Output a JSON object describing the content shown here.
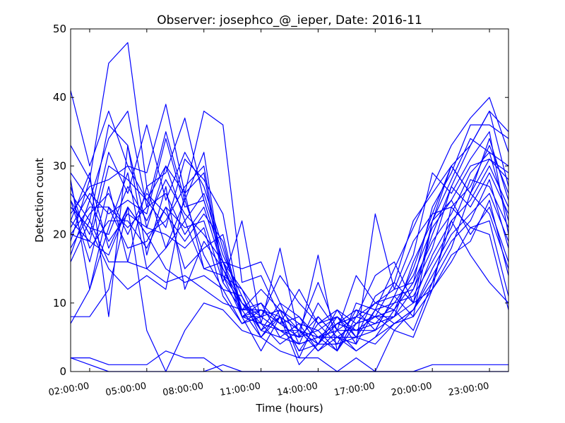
{
  "chart_data": {
    "type": "line",
    "title": "Observer: josephco_@_ieper, Date: 2016-11",
    "xlabel": "Time (hours)",
    "ylabel": "Detection count",
    "x_unit": "hours",
    "xlim": [
      1,
      24
    ],
    "ylim": [
      0,
      50
    ],
    "yticks": [
      0,
      10,
      20,
      30,
      40,
      50
    ],
    "xticks": [
      {
        "x": 2,
        "label": "02:00:00"
      },
      {
        "x": 5,
        "label": "05:00:00"
      },
      {
        "x": 8,
        "label": "08:00:00"
      },
      {
        "x": 11,
        "label": "11:00:00"
      },
      {
        "x": 14,
        "label": "14:00:00"
      },
      {
        "x": 17,
        "label": "17:00:00"
      },
      {
        "x": 20,
        "label": "20:00:00"
      },
      {
        "x": 23,
        "label": "23:00:00"
      }
    ],
    "grid": false,
    "legend": "none",
    "line_color": "#0000ff",
    "x": [
      1,
      2,
      3,
      4,
      5,
      6,
      7,
      8,
      9,
      10,
      11,
      12,
      13,
      14,
      15,
      16,
      17,
      18,
      19,
      20,
      21,
      22,
      23,
      24
    ],
    "series": [
      {
        "values": [
          41,
          30,
          38,
          30,
          29,
          39,
          26,
          38,
          36,
          13,
          14,
          8,
          6,
          4,
          7,
          9,
          6,
          11,
          12,
          20,
          27,
          33,
          38,
          35
        ]
      },
      {
        "values": [
          33,
          28,
          45,
          48,
          27,
          29,
          37,
          25,
          16,
          15,
          16,
          10,
          8,
          5,
          3,
          10,
          9,
          15,
          21,
          27,
          33,
          37,
          40,
          32
        ]
      },
      {
        "values": [
          29,
          25,
          34,
          38,
          24,
          35,
          25,
          32,
          14,
          12,
          8,
          14,
          10,
          7,
          9,
          7,
          8,
          13,
          22,
          26,
          30,
          33,
          38,
          27
        ]
      },
      {
        "values": [
          26,
          22,
          36,
          33,
          21,
          30,
          26,
          29,
          13,
          22,
          7,
          18,
          5,
          17,
          3,
          8,
          10,
          9,
          13,
          24,
          29,
          36,
          36,
          34
        ]
      },
      {
        "values": [
          25,
          20,
          32,
          26,
          36,
          25,
          32,
          27,
          18,
          9,
          12,
          9,
          6,
          13,
          6,
          14,
          10,
          11,
          17,
          29,
          26,
          31,
          35,
          20
        ]
      },
      {
        "values": [
          23,
          27,
          28,
          30,
          25,
          21,
          31,
          28,
          23,
          8,
          10,
          7,
          12,
          7,
          8,
          4,
          23,
          12,
          19,
          23,
          30,
          26,
          34,
          25
        ]
      },
      {
        "values": [
          22,
          19,
          30,
          28,
          25,
          30,
          22,
          26,
          17,
          11,
          6,
          10,
          4,
          10,
          6,
          6,
          7,
          8,
          16,
          22,
          28,
          34,
          32,
          30
        ]
      },
      {
        "values": [
          21,
          26,
          23,
          25,
          23,
          34,
          24,
          25,
          16,
          10,
          8,
          9,
          7,
          6,
          8,
          5,
          9,
          10,
          14,
          21,
          25,
          30,
          31,
          28
        ]
      },
      {
        "values": [
          20,
          24,
          24,
          21,
          24,
          26,
          20,
          24,
          15,
          9,
          9,
          8,
          6,
          5,
          7,
          6,
          8,
          9,
          15,
          23,
          24,
          27,
          33,
          26
        ]
      },
      {
        "values": [
          19,
          28,
          18,
          24,
          20,
          22,
          27,
          30,
          14,
          10,
          7,
          6,
          5,
          8,
          5,
          7,
          10,
          12,
          13,
          19,
          23,
          29,
          32,
          22
        ]
      },
      {
        "values": [
          18,
          23,
          26,
          20,
          26,
          23,
          19,
          23,
          19,
          8,
          9,
          7,
          8,
          4,
          9,
          5,
          11,
          13,
          10,
          17,
          22,
          25,
          30,
          24
        ]
      },
      {
        "values": [
          24,
          21,
          20,
          27,
          22,
          28,
          23,
          20,
          16,
          12,
          6,
          8,
          3,
          7,
          4,
          9,
          8,
          8,
          12,
          18,
          27,
          24,
          29,
          23
        ]
      },
      {
        "values": [
          27,
          18,
          22,
          22,
          18,
          24,
          21,
          22,
          13,
          9,
          10,
          5,
          7,
          3,
          6,
          8,
          7,
          10,
          11,
          16,
          21,
          28,
          27,
          21
        ]
      },
      {
        "values": [
          16,
          22,
          16,
          16,
          27,
          18,
          25,
          17,
          12,
          11,
          5,
          9,
          2,
          8,
          5,
          4,
          9,
          7,
          9,
          15,
          20,
          23,
          26,
          19
        ]
      },
      {
        "values": [
          28,
          12,
          24,
          18,
          19,
          24,
          15,
          18,
          20,
          8,
          8,
          6,
          6,
          4,
          8,
          6,
          6,
          11,
          8,
          22,
          25,
          20,
          24,
          16
        ]
      },
      {
        "values": [
          17,
          25,
          19,
          23,
          21,
          20,
          18,
          21,
          11,
          7,
          9,
          7,
          5,
          6,
          3,
          7,
          8,
          6,
          9,
          14,
          19,
          22,
          28,
          18
        ]
      },
      {
        "values": [
          22,
          29,
          8,
          33,
          17,
          27,
          12,
          19,
          15,
          10,
          6,
          5,
          4,
          5,
          5,
          3,
          5,
          9,
          6,
          13,
          18,
          26,
          23,
          15
        ]
      },
      {
        "values": [
          25,
          16,
          27,
          16,
          15,
          13,
          14,
          12,
          10,
          9,
          5,
          8,
          3,
          4,
          4,
          5,
          6,
          8,
          10,
          12,
          24,
          21,
          22,
          11
        ]
      },
      {
        "values": [
          7,
          12,
          21,
          29,
          15,
          18,
          22,
          15,
          14,
          8,
          7,
          4,
          6,
          3,
          5,
          5,
          4,
          7,
          8,
          12,
          17,
          19,
          25,
          14
        ]
      },
      {
        "values": [
          20,
          19,
          17,
          24,
          6,
          0,
          6,
          10,
          9,
          6,
          5,
          3,
          2,
          2,
          0,
          2,
          0,
          6,
          5,
          12,
          16,
          21,
          20,
          9
        ]
      },
      {
        "values": [
          24,
          21,
          15,
          12,
          14,
          12,
          26,
          15,
          16,
          8,
          3,
          8,
          1,
          4,
          7,
          8,
          14,
          16,
          10,
          22,
          30,
          26,
          31,
          29
        ]
      },
      {
        "values": [
          8,
          8,
          12,
          24,
          20,
          15,
          13,
          14,
          12,
          7,
          8,
          6,
          4,
          5,
          6,
          3,
          5,
          7,
          9,
          13,
          22,
          17,
          13,
          10
        ]
      },
      {
        "values": [
          2,
          2,
          1,
          1,
          1,
          3,
          2,
          2,
          0,
          0,
          0,
          0,
          0,
          0,
          0,
          0,
          0,
          0,
          0,
          1,
          1,
          1,
          1,
          1
        ]
      },
      {
        "values": [
          2,
          1,
          0,
          0,
          0,
          0,
          0,
          0,
          1,
          0,
          0,
          0,
          0,
          0,
          0,
          0,
          0,
          0,
          0,
          0,
          0,
          0,
          0,
          0
        ]
      }
    ]
  }
}
